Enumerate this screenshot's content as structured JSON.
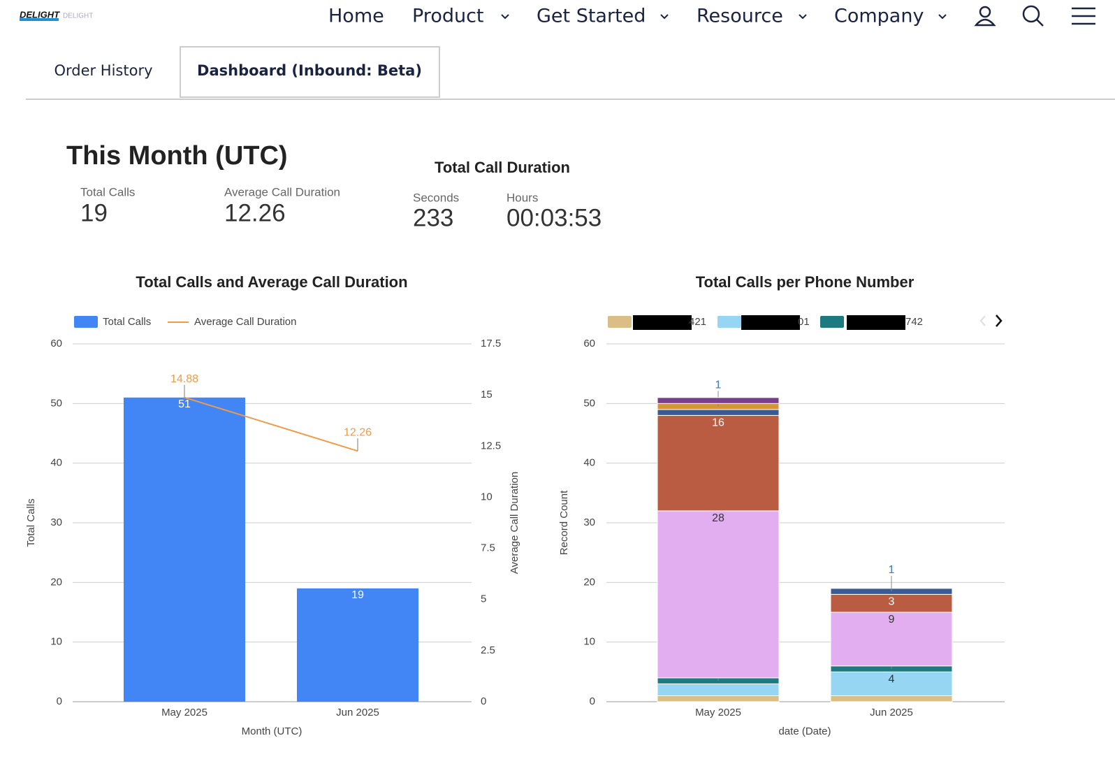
{
  "header": {
    "logo": "DELIGHT",
    "nav": [
      "Home",
      "Product",
      "Get Started",
      "Resource",
      "Company"
    ]
  },
  "tabs": [
    "Order History",
    "Dashboard (Inbound: Beta)"
  ],
  "summary": {
    "title": "This Month (UTC)",
    "stats": [
      {
        "label": "Total Calls",
        "value": 19
      },
      {
        "label": "Average Call Duration",
        "value": 12.26
      }
    ],
    "duration": {
      "title": "Total Call Duration",
      "stats": [
        {
          "label": "Seconds",
          "value": 233
        },
        {
          "label": "Hours",
          "value": "00:03:53"
        }
      ]
    }
  },
  "chart_data": [
    {
      "type": "bar",
      "title": "Total Calls and Average Call Duration",
      "categories": [
        "May 2025",
        "Jun 2025"
      ],
      "series": [
        {
          "name": "Total Calls",
          "type": "bar",
          "color": "#4285f4",
          "values": [
            51,
            19
          ]
        },
        {
          "name": "Average Call Duration",
          "type": "line",
          "axis": "y2",
          "color": "#f19a48",
          "values": [
            14.88,
            12.26
          ]
        }
      ],
      "xlabel": "Month (UTC)",
      "ylabel": "Total Calls",
      "y2label": "Average Call Duration",
      "ylim": [
        0,
        60
      ],
      "yticks": [
        0,
        10,
        20,
        30,
        40,
        50,
        60
      ],
      "y2lim": [
        0,
        17.5
      ],
      "y2ticks": [
        0,
        2.5,
        5,
        7.5,
        10,
        12.5,
        15,
        17.5
      ],
      "grid": true,
      "legend": "top"
    },
    {
      "type": "stacked_bar",
      "title": "Total Calls per Phone Number",
      "categories": [
        "May 2025",
        "Jun 2025"
      ],
      "series": [
        {
          "name": "421",
          "color": "#dbbd86",
          "values": [
            1,
            1
          ],
          "value_labels": [
            null,
            null
          ]
        },
        {
          "name": "01",
          "color": "#97d6f2",
          "values": [
            2,
            4
          ],
          "value_labels": [
            null,
            "4"
          ]
        },
        {
          "name": "742",
          "color": "#1c7a80",
          "values": [
            1,
            1
          ],
          "value_labels": [
            "1",
            "1"
          ]
        },
        {
          "color": "#e3aef0",
          "values": [
            28,
            9
          ],
          "value_labels": [
            "28",
            "9"
          ]
        },
        {
          "color": "#b95c41",
          "values": [
            16,
            3
          ],
          "value_labels": [
            "16",
            "3"
          ]
        },
        {
          "color": "#3a5a96",
          "values": [
            1,
            1
          ],
          "value_labels": [
            null,
            "1"
          ]
        },
        {
          "color": "#d4943a",
          "values": [
            1,
            null
          ],
          "value_labels": [
            "1",
            null
          ]
        },
        {
          "color": "#7a3f8c",
          "values": [
            1,
            null
          ],
          "value_labels": [
            null,
            null
          ]
        }
      ],
      "xlabel": "date (Date)",
      "ylabel": "Record Count",
      "ylim": [
        0,
        60
      ],
      "yticks": [
        0,
        10,
        20,
        30,
        40,
        50,
        60
      ],
      "grid": true,
      "legend": "top"
    }
  ]
}
